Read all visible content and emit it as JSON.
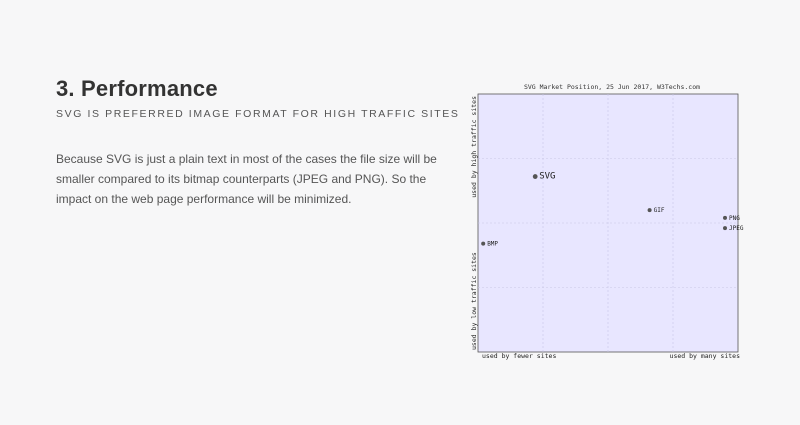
{
  "section": {
    "title": "3. Performance",
    "subtitle": "SVG IS PREFERRED IMAGE FORMAT FOR HIGH TRAFFIC SITES",
    "body": "Because SVG is just a plain text in most of the cases the file size will be smaller compared to its bitmap counterparts (JPEG and PNG). So the impact on the web page performance will be minimized."
  },
  "chart_data": {
    "type": "scatter",
    "title": "SVG Market Position, 25 Jun 2017, W3Techs.com",
    "xlabel_left": "used by fewer sites",
    "xlabel_right": "used by many sites",
    "ylabel_top": "used by high traffic sites",
    "ylabel_bottom": "used by low traffic sites",
    "xlim": [
      0,
      100
    ],
    "ylim": [
      0,
      100
    ],
    "grid": true,
    "plot_background": "#e8e6ff",
    "point_color": "#555555",
    "points": [
      {
        "label": "SVG",
        "x": 22,
        "y": 68
      },
      {
        "label": "GIF",
        "x": 66,
        "y": 55
      },
      {
        "label": "PNG",
        "x": 95,
        "y": 52
      },
      {
        "label": "JPEG",
        "x": 95,
        "y": 48
      },
      {
        "label": "BMP",
        "x": 2,
        "y": 42
      }
    ]
  }
}
